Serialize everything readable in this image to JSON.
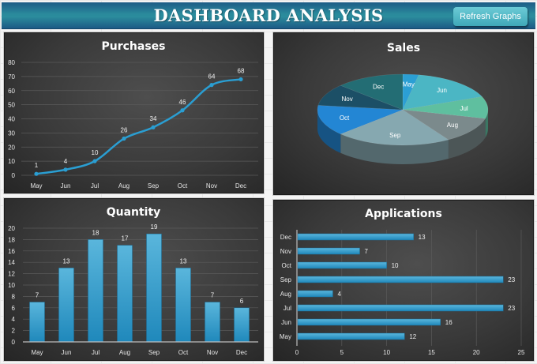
{
  "header": {
    "title": "DASHBOARD ANALYSIS",
    "refresh_button": "Refresh Graphs"
  },
  "colors": {
    "header_dark": "#1d5c86",
    "header_light": "#2a8a9c",
    "button": "#4fb8c6",
    "series_blue": "#2e9bd0",
    "panel_bg": "#3a3a3a"
  },
  "chart_data": [
    {
      "id": "purchases",
      "type": "line",
      "title": "Purchases",
      "categories": [
        "May",
        "Jun",
        "Jul",
        "Aug",
        "Sep",
        "Oct",
        "Nov",
        "Dec"
      ],
      "values": [
        1,
        4,
        10,
        26,
        34,
        46,
        64,
        68
      ],
      "xlabel": "",
      "ylabel": "",
      "ylim": [
        0,
        80
      ],
      "yticks": [
        0,
        10,
        20,
        30,
        40,
        50,
        60,
        70,
        80
      ],
      "grid": true,
      "data_labels": true,
      "legend": "none"
    },
    {
      "id": "sales",
      "type": "pie",
      "title": "Sales",
      "style": "3d",
      "categories": [
        "May",
        "Jun",
        "Jul",
        "Aug",
        "Sep",
        "Oct",
        "Nov",
        "Dec"
      ],
      "values": [
        3,
        16,
        10,
        12,
        22,
        14,
        10,
        13
      ],
      "values_estimated": true,
      "colors": [
        "#2b9fd4",
        "#4bb6c4",
        "#5fbf9f",
        "#7b8a8c",
        "#86a8b0",
        "#2386d4",
        "#1c4f66",
        "#236d74"
      ],
      "data_labels": "category",
      "legend": "none"
    },
    {
      "id": "quantity",
      "type": "bar",
      "title": "Quantity",
      "categories": [
        "May",
        "Jun",
        "Jul",
        "Aug",
        "Sep",
        "Oct",
        "Nov",
        "Dec"
      ],
      "values": [
        7,
        13,
        18,
        17,
        19,
        13,
        7,
        6
      ],
      "xlabel": "",
      "ylabel": "",
      "ylim": [
        0,
        20
      ],
      "yticks": [
        0,
        2,
        4,
        6,
        8,
        10,
        12,
        14,
        16,
        18,
        20
      ],
      "grid": true,
      "data_labels": true,
      "legend": "none"
    },
    {
      "id": "applications",
      "type": "bar",
      "orientation": "horizontal",
      "title": "Applications",
      "categories": [
        "May",
        "Jun",
        "Jul",
        "Aug",
        "Sep",
        "Oct",
        "Nov",
        "Dec"
      ],
      "values": [
        12,
        16,
        23,
        4,
        23,
        10,
        7,
        13
      ],
      "xlabel": "",
      "ylabel": "",
      "xlim": [
        0,
        25
      ],
      "xticks": [
        0,
        5,
        10,
        15,
        20,
        25
      ],
      "grid": true,
      "data_labels": true,
      "legend": "none"
    }
  ]
}
